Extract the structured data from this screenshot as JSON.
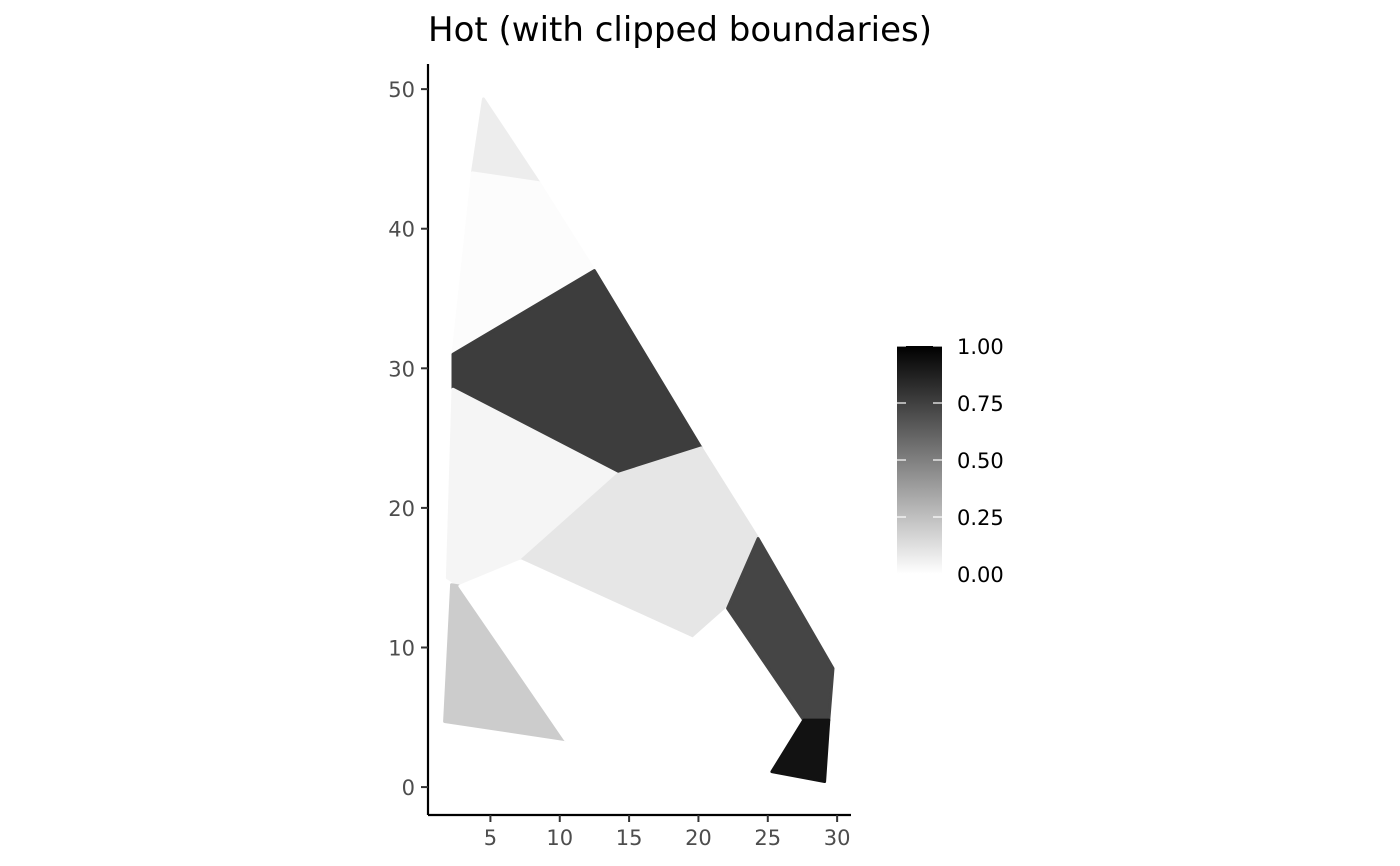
{
  "chart_data": {
    "type": "polygon-map",
    "title": "Hot (with clipped boundaries)",
    "xlabel": "",
    "ylabel": "",
    "xlim": [
      0.5,
      31
    ],
    "ylim": [
      -2,
      51.8
    ],
    "x_ticks": [
      5,
      10,
      15,
      20,
      25,
      30
    ],
    "y_ticks": [
      0,
      10,
      20,
      30,
      40,
      50
    ],
    "x_tick_labels": [
      "5",
      "10",
      "15",
      "20",
      "25",
      "30"
    ],
    "y_tick_labels": [
      "0",
      "10",
      "20",
      "30",
      "40",
      "50"
    ],
    "grid": false,
    "color_scale": {
      "low": "#ffffff",
      "high": "#000000",
      "range": [
        0,
        1
      ]
    },
    "regions": [
      {
        "id": "top-tip",
        "value": 0.07,
        "vertices": [
          [
            3.7,
            44
          ],
          [
            4.5,
            49.3
          ],
          [
            8.5,
            43.3
          ]
        ]
      },
      {
        "id": "upper",
        "value": 0.01,
        "vertices": [
          [
            3.7,
            44
          ],
          [
            8.5,
            43.3
          ],
          [
            12.5,
            37
          ],
          [
            2.3,
            31
          ]
        ]
      },
      {
        "id": "upper-middle",
        "value": 0.76,
        "vertices": [
          [
            2.3,
            31
          ],
          [
            12.5,
            37
          ],
          [
            20.2,
            24.3
          ],
          [
            14.2,
            22.4
          ],
          [
            2.3,
            28.5
          ]
        ]
      },
      {
        "id": "middle-left",
        "value": 0.04,
        "vertices": [
          [
            2.3,
            28.5
          ],
          [
            14.2,
            22.4
          ],
          [
            7.2,
            16.2
          ],
          [
            2.8,
            14.4
          ],
          [
            1.9,
            15
          ]
        ]
      },
      {
        "id": "center",
        "value": 0.1,
        "vertices": [
          [
            7.2,
            16.2
          ],
          [
            14.2,
            22.4
          ],
          [
            20.2,
            24.3
          ],
          [
            24.3,
            17.8
          ],
          [
            22.1,
            12.8
          ],
          [
            19.6,
            10.6
          ]
        ]
      },
      {
        "id": "lower-left",
        "value": 0.2,
        "vertices": [
          [
            2.8,
            14.4
          ],
          [
            10.4,
            3.4
          ],
          [
            1.7,
            4.7
          ],
          [
            2.2,
            14.5
          ]
        ]
      },
      {
        "id": "bottom",
        "value": 0.0,
        "vertices": [
          [
            2.8,
            14.4
          ],
          [
            7.2,
            16.2
          ],
          [
            19.6,
            10.6
          ],
          [
            22.1,
            12.8
          ],
          [
            27.6,
            4.8
          ],
          [
            29.7,
            0.4
          ],
          [
            25.3,
            1.1
          ],
          [
            10.4,
            3.4
          ]
        ]
      },
      {
        "id": "lower-right",
        "value": 0.73,
        "vertices": [
          [
            22.1,
            12.8
          ],
          [
            24.3,
            17.8
          ],
          [
            29.7,
            8.5
          ],
          [
            29.4,
            4.8
          ],
          [
            27.6,
            4.8
          ]
        ]
      },
      {
        "id": "bottom-right",
        "value": 0.93,
        "vertices": [
          [
            27.6,
            4.8
          ],
          [
            29.4,
            4.8
          ],
          [
            29.1,
            0.4
          ],
          [
            25.3,
            1.1
          ]
        ]
      }
    ],
    "legend": {
      "position": "right",
      "labels": [
        "1.00",
        "0.75",
        "0.50",
        "0.25",
        "0.00"
      ],
      "breaks": [
        1,
        0.75,
        0.5,
        0.25,
        0
      ]
    }
  }
}
